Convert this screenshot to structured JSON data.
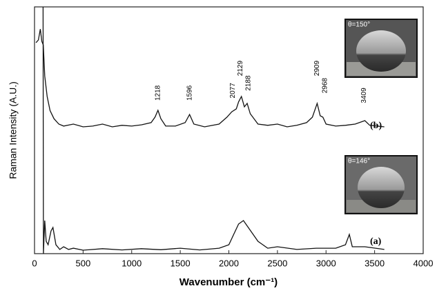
{
  "chart_data": {
    "type": "line",
    "xlabel": "Wavenumber (cm⁻¹)",
    "ylabel": "Raman Intensity (A.U.)",
    "xlim": [
      0,
      4000
    ],
    "xticks": [
      0,
      500,
      1000,
      1500,
      2000,
      2500,
      3000,
      3500,
      4000
    ],
    "ylim": [
      0,
      100
    ],
    "series": [
      {
        "name": "(b)",
        "color": "#111111",
        "x": [
          15,
          40,
          60,
          75,
          90,
          105,
          130,
          160,
          200,
          250,
          300,
          400,
          500,
          600,
          700,
          800,
          900,
          1000,
          1100,
          1200,
          1240,
          1270,
          1300,
          1350,
          1450,
          1550,
          1596,
          1640,
          1750,
          1900,
          1980,
          2030,
          2077,
          2100,
          2129,
          2160,
          2188,
          2220,
          2300,
          2400,
          2500,
          2600,
          2700,
          2800,
          2860,
          2909,
          2940,
          2968,
          3000,
          3100,
          3200,
          3300,
          3400,
          3450,
          3600
        ],
        "values": [
          85.5,
          86.6,
          91,
          86,
          84.6,
          72,
          63.7,
          58,
          54.7,
          52.5,
          51.7,
          52.5,
          51.4,
          51.7,
          52.5,
          51.4,
          52,
          51.7,
          52.2,
          53.1,
          55.3,
          58.1,
          54.7,
          51.7,
          51.7,
          53.1,
          56.4,
          52.5,
          51.4,
          52.5,
          55.3,
          57.5,
          58.7,
          61.5,
          63.7,
          59.5,
          60.9,
          56.7,
          52.5,
          52,
          52.5,
          51.4,
          52,
          53.1,
          55.3,
          60.9,
          55.9,
          55.3,
          52.5,
          51.7,
          52,
          52.5,
          53.9,
          52,
          51.4
        ]
      },
      {
        "name": "(a)",
        "color": "#111111",
        "x": [
          88,
          92,
          105,
          120,
          140,
          170,
          190,
          220,
          260,
          300,
          350,
          400,
          500,
          700,
          900,
          1100,
          1300,
          1500,
          1700,
          1900,
          2000,
          2050,
          2100,
          2150,
          2200,
          2250,
          2300,
          2400,
          2500,
          2700,
          2900,
          3100,
          3200,
          3240,
          3270,
          3400,
          3600
        ],
        "values": [
          100,
          0,
          13.4,
          5,
          3.6,
          9.2,
          10.6,
          3.6,
          1.7,
          2.8,
          1.7,
          2.2,
          1.4,
          2,
          1.5,
          2,
          1.6,
          2.2,
          1.5,
          2.2,
          3.6,
          7.8,
          12,
          13.4,
          10.6,
          7.8,
          5,
          2.2,
          2.8,
          1.7,
          2.2,
          2.2,
          3.6,
          7.8,
          2.8,
          2.8,
          1.7
        ]
      }
    ],
    "annotations": [
      {
        "text": "1218",
        "x": 1270,
        "y": 62
      },
      {
        "text": "1596",
        "x": 1596,
        "y": 62
      },
      {
        "text": "2077",
        "x": 2040,
        "y": 63
      },
      {
        "text": "2129",
        "x": 2120,
        "y": 72
      },
      {
        "text": "2188",
        "x": 2200,
        "y": 66
      },
      {
        "text": "2909",
        "x": 2909,
        "y": 72
      },
      {
        "text": "2968",
        "x": 2990,
        "y": 65
      },
      {
        "text": "3409",
        "x": 3390,
        "y": 61
      }
    ],
    "series_labels": [
      "(b)",
      "(a)"
    ],
    "insets": [
      "θ=150°",
      "θ=146°"
    ]
  }
}
